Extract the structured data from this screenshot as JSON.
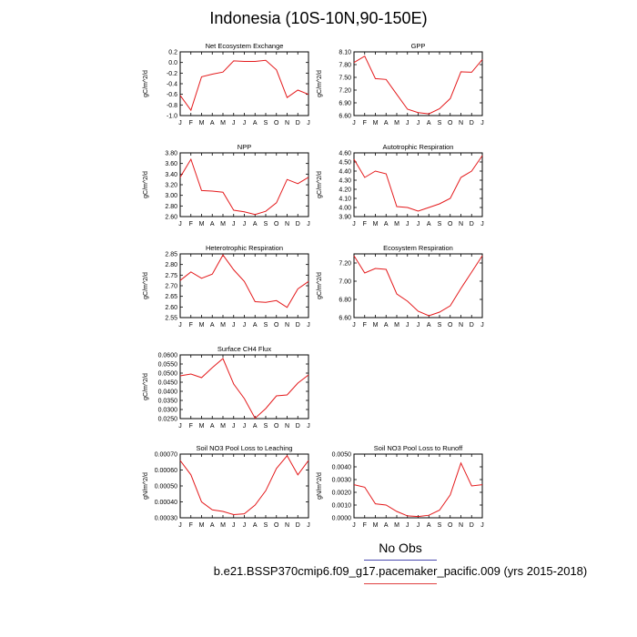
{
  "title": "Indonesia (10S-10N,90-150E)",
  "legend": {
    "label": "No Obs",
    "case": "b.e21.BSSP370cmip6.f09_g17.pacemaker_pacific.009 (yrs 2015-2018)"
  },
  "colors": {
    "series": "#e41a1c",
    "legend_line_1": "#4a4ab0",
    "legend_line_2": "#e04040"
  },
  "chart_data": [
    {
      "type": "line",
      "title": "Net Ecosystem Exchange",
      "ylabel": "gC/m^2/d",
      "x": [
        "J",
        "F",
        "M",
        "A",
        "M",
        "J",
        "J",
        "A",
        "S",
        "O",
        "N",
        "D",
        "J"
      ],
      "ylim": [
        -1.0,
        0.2
      ],
      "yticks": [
        "0.2",
        "0.0",
        "-0.2",
        "-0.4",
        "-0.6",
        "-0.8",
        "-1.0"
      ],
      "yticks_values": [
        0.2,
        0.0,
        -0.2,
        -0.4,
        -0.6,
        -0.8,
        -1.0
      ],
      "values": [
        -0.62,
        -0.9,
        -0.27,
        -0.22,
        -0.18,
        0.03,
        0.02,
        0.02,
        0.04,
        -0.14,
        -0.66,
        -0.52,
        -0.6
      ]
    },
    {
      "type": "line",
      "title": "GPP",
      "ylabel": "gC/m^2/d",
      "x": [
        "J",
        "F",
        "M",
        "A",
        "M",
        "J",
        "J",
        "A",
        "S",
        "O",
        "N",
        "D",
        "J"
      ],
      "ylim": [
        6.6,
        8.1
      ],
      "yticks": [
        "8.10",
        "7.80",
        "7.50",
        "7.20",
        "6.90",
        "6.60"
      ],
      "yticks_values": [
        8.1,
        7.8,
        7.5,
        7.2,
        6.9,
        6.6
      ],
      "values": [
        7.85,
        8.0,
        7.47,
        7.45,
        7.1,
        6.75,
        6.67,
        6.64,
        6.76,
        7.0,
        7.63,
        7.62,
        7.92
      ]
    },
    {
      "type": "line",
      "title": "NPP",
      "ylabel": "gC/m^2/d",
      "x": [
        "J",
        "F",
        "M",
        "A",
        "M",
        "J",
        "J",
        "A",
        "S",
        "O",
        "N",
        "D",
        "J"
      ],
      "ylim": [
        2.6,
        3.8
      ],
      "yticks": [
        "3.80",
        "3.60",
        "3.40",
        "3.20",
        "3.00",
        "2.80",
        "2.60"
      ],
      "yticks_values": [
        3.8,
        3.6,
        3.4,
        3.2,
        3.0,
        2.8,
        2.6
      ],
      "values": [
        3.34,
        3.68,
        3.09,
        3.08,
        3.06,
        2.72,
        2.69,
        2.64,
        2.7,
        2.86,
        3.3,
        3.22,
        3.34
      ]
    },
    {
      "type": "line",
      "title": "Autotrophic Respiration",
      "ylabel": "gC/m^2/d",
      "x": [
        "J",
        "F",
        "M",
        "A",
        "M",
        "J",
        "J",
        "A",
        "S",
        "O",
        "N",
        "D",
        "J"
      ],
      "ylim": [
        3.9,
        4.6
      ],
      "yticks": [
        "4.60",
        "4.50",
        "4.40",
        "4.30",
        "4.20",
        "4.10",
        "4.00",
        "3.90"
      ],
      "yticks_values": [
        4.6,
        4.5,
        4.4,
        4.3,
        4.2,
        4.1,
        4.0,
        3.9
      ],
      "values": [
        4.53,
        4.33,
        4.4,
        4.37,
        4.01,
        4.0,
        3.96,
        4.0,
        4.04,
        4.1,
        4.33,
        4.4,
        4.57
      ]
    },
    {
      "type": "line",
      "title": "Heterotrophic Respiration",
      "ylabel": "gC/m^2/d",
      "x": [
        "J",
        "F",
        "M",
        "A",
        "M",
        "J",
        "J",
        "A",
        "S",
        "O",
        "N",
        "D",
        "J"
      ],
      "ylim": [
        2.55,
        2.85
      ],
      "yticks": [
        "2.85",
        "2.80",
        "2.75",
        "2.70",
        "2.65",
        "2.60",
        "2.55"
      ],
      "yticks_values": [
        2.85,
        2.8,
        2.75,
        2.7,
        2.65,
        2.6,
        2.55
      ],
      "values": [
        2.725,
        2.765,
        2.735,
        2.755,
        2.845,
        2.775,
        2.72,
        2.625,
        2.622,
        2.63,
        2.598,
        2.685,
        2.72
      ]
    },
    {
      "type": "line",
      "title": "Ecosystem Respiration",
      "ylabel": "gC/m^2/d",
      "x": [
        "J",
        "F",
        "M",
        "A",
        "M",
        "J",
        "J",
        "A",
        "S",
        "O",
        "N",
        "D",
        "J"
      ],
      "ylim": [
        6.6,
        7.3
      ],
      "yticks": [
        "7.20",
        "7.00",
        "6.80",
        "6.60"
      ],
      "yticks_values": [
        7.2,
        7.0,
        6.8,
        6.6
      ],
      "values": [
        7.28,
        7.09,
        7.14,
        7.13,
        6.86,
        6.78,
        6.67,
        6.62,
        6.66,
        6.73,
        6.92,
        7.1,
        7.28
      ]
    },
    {
      "type": "line",
      "title": "Surface CH4 Flux",
      "ylabel": "gC/m^2/d",
      "x": [
        "J",
        "F",
        "M",
        "A",
        "M",
        "J",
        "J",
        "A",
        "S",
        "O",
        "N",
        "D",
        "J"
      ],
      "ylim": [
        0.025,
        0.06
      ],
      "yticks": [
        "0.0600",
        "0.0550",
        "0.0500",
        "0.0450",
        "0.0400",
        "0.0350",
        "0.0300",
        "0.0250"
      ],
      "yticks_values": [
        0.06,
        0.055,
        0.05,
        0.045,
        0.04,
        0.035,
        0.03,
        0.025
      ],
      "values": [
        0.0485,
        0.0495,
        0.0475,
        0.053,
        0.058,
        0.044,
        0.036,
        0.0252,
        0.0305,
        0.0375,
        0.038,
        0.0445,
        0.049
      ]
    },
    {
      "type": "line",
      "title": "Soil NO3 Pool Loss to Leaching",
      "ylabel": "gN/m^2/d",
      "x": [
        "J",
        "F",
        "M",
        "A",
        "M",
        "J",
        "J",
        "A",
        "S",
        "O",
        "N",
        "D",
        "J"
      ],
      "ylim": [
        0.0003,
        0.0007
      ],
      "yticks": [
        "0.00070",
        "0.00060",
        "0.00050",
        "0.00040",
        "0.00030"
      ],
      "yticks_values": [
        0.0007,
        0.0006,
        0.0005,
        0.0004,
        0.0003
      ],
      "values": [
        0.00066,
        0.00057,
        0.0004,
        0.00035,
        0.00034,
        0.00032,
        0.000325,
        0.00038,
        0.00047,
        0.00061,
        0.00069,
        0.00057,
        0.00066
      ]
    },
    {
      "type": "line",
      "title": "Soil NO3 Pool Loss to Runoff",
      "ylabel": "gN/m^2/d",
      "x": [
        "J",
        "F",
        "M",
        "A",
        "M",
        "J",
        "J",
        "A",
        "S",
        "O",
        "N",
        "D",
        "J"
      ],
      "ylim": [
        0.0,
        0.005
      ],
      "yticks": [
        "0.0050",
        "0.0040",
        "0.0030",
        "0.0020",
        "0.0010",
        "0.0000"
      ],
      "yticks_values": [
        0.005,
        0.004,
        0.003,
        0.002,
        0.001,
        0.0
      ],
      "values": [
        0.0026,
        0.0024,
        0.0011,
        0.001,
        0.0005,
        0.00015,
        0.0001,
        0.0002,
        0.0006,
        0.0018,
        0.0043,
        0.0025,
        0.0026
      ]
    }
  ]
}
